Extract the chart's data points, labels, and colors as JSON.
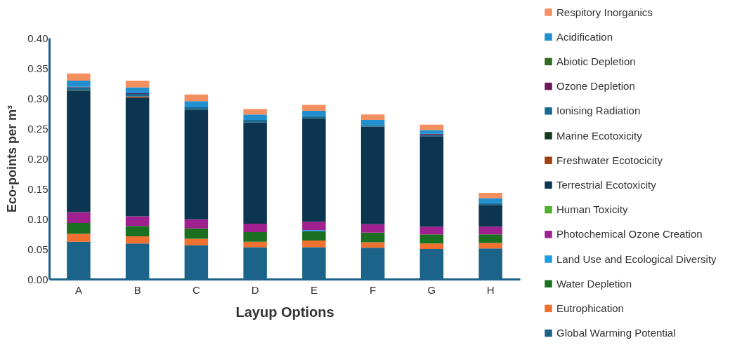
{
  "chart_data": {
    "type": "bar",
    "stacked": true,
    "xlabel": "Layup Options",
    "ylabel": "Eco-points per m³",
    "categories": [
      "A",
      "B",
      "C",
      "D",
      "E",
      "F",
      "G",
      "H"
    ],
    "ylim": [
      0,
      0.4
    ],
    "yticks": [
      {
        "value": 0,
        "label": "0.00"
      },
      {
        "value": 0.05,
        "label": "0.05"
      },
      {
        "value": 0.1,
        "label": "0.10"
      },
      {
        "value": 0.15,
        "label": "0.15"
      },
      {
        "value": 0.2,
        "label": "0.20"
      },
      {
        "value": 0.25,
        "label": "0.25"
      },
      {
        "value": 0.3,
        "label": "0.30"
      },
      {
        "value": 0.35,
        "label": "0.35"
      },
      {
        "value": 0.4,
        "label": "0.40"
      }
    ],
    "grid": false,
    "legend": "right",
    "series": [
      {
        "name": "Global Warming Potential",
        "color": "#1b6389",
        "values": [
          0.062,
          0.059,
          0.056,
          0.053,
          0.053,
          0.052,
          0.05,
          0.051
        ]
      },
      {
        "name": "Eutrophication",
        "color": "#f07030",
        "values": [
          0.013,
          0.012,
          0.011,
          0.009,
          0.011,
          0.009,
          0.009,
          0.009
        ]
      },
      {
        "name": "Water Depletion",
        "color": "#1a7020",
        "values": [
          0.018,
          0.017,
          0.017,
          0.016,
          0.015,
          0.016,
          0.015,
          0.014
        ]
      },
      {
        "name": "Land Use and Ecological Diversity",
        "color": "#1aa0e0",
        "values": [
          null,
          null,
          null,
          null,
          0.002,
          null,
          null,
          null
        ]
      },
      {
        "name": "Photochemical Ozone Creation",
        "color": "#a0208f",
        "values": [
          0.018,
          0.016,
          0.015,
          0.014,
          0.014,
          0.014,
          0.013,
          0.013
        ]
      },
      {
        "name": "Human Toxicity",
        "color": "#50b030",
        "values": [
          null,
          null,
          null,
          null,
          null,
          null,
          null,
          null
        ]
      },
      {
        "name": "Terrestrial Ecotoxicity",
        "color": "#0b3550",
        "values": [
          0.201,
          0.197,
          0.182,
          0.168,
          0.172,
          0.162,
          0.15,
          0.036
        ]
      },
      {
        "name": "Freshwater Ecotocicity",
        "color": "#a04010",
        "values": [
          null,
          0.002,
          null,
          null,
          null,
          null,
          null,
          null
        ]
      },
      {
        "name": "Marine Ecotoxicity",
        "color": "#143a1c",
        "values": [
          0.001,
          null,
          null,
          null,
          null,
          null,
          null,
          null
        ]
      },
      {
        "name": "Ionising Radiation",
        "color": "#186a90",
        "values": [
          0.005,
          0.004,
          0.004,
          0.004,
          0.003,
          0.002,
          0.002,
          0.003
        ]
      },
      {
        "name": "Ozone Depletion",
        "color": "#6a1a5a",
        "values": [
          0.001,
          0.001,
          null,
          null,
          null,
          null,
          0.002,
          null
        ]
      },
      {
        "name": "Abiotic Depletion",
        "color": "#306a20",
        "values": [
          null,
          null,
          null,
          null,
          null,
          null,
          null,
          null
        ]
      },
      {
        "name": "Acidification",
        "color": "#2090d0",
        "values": [
          0.01,
          0.01,
          0.01,
          0.009,
          0.009,
          0.009,
          0.006,
          0.008
        ]
      },
      {
        "name": "Respitory Inorganics",
        "color": "#f49060",
        "values": [
          0.012,
          0.011,
          0.011,
          0.009,
          0.01,
          0.009,
          0.009,
          0.009
        ]
      }
    ]
  }
}
